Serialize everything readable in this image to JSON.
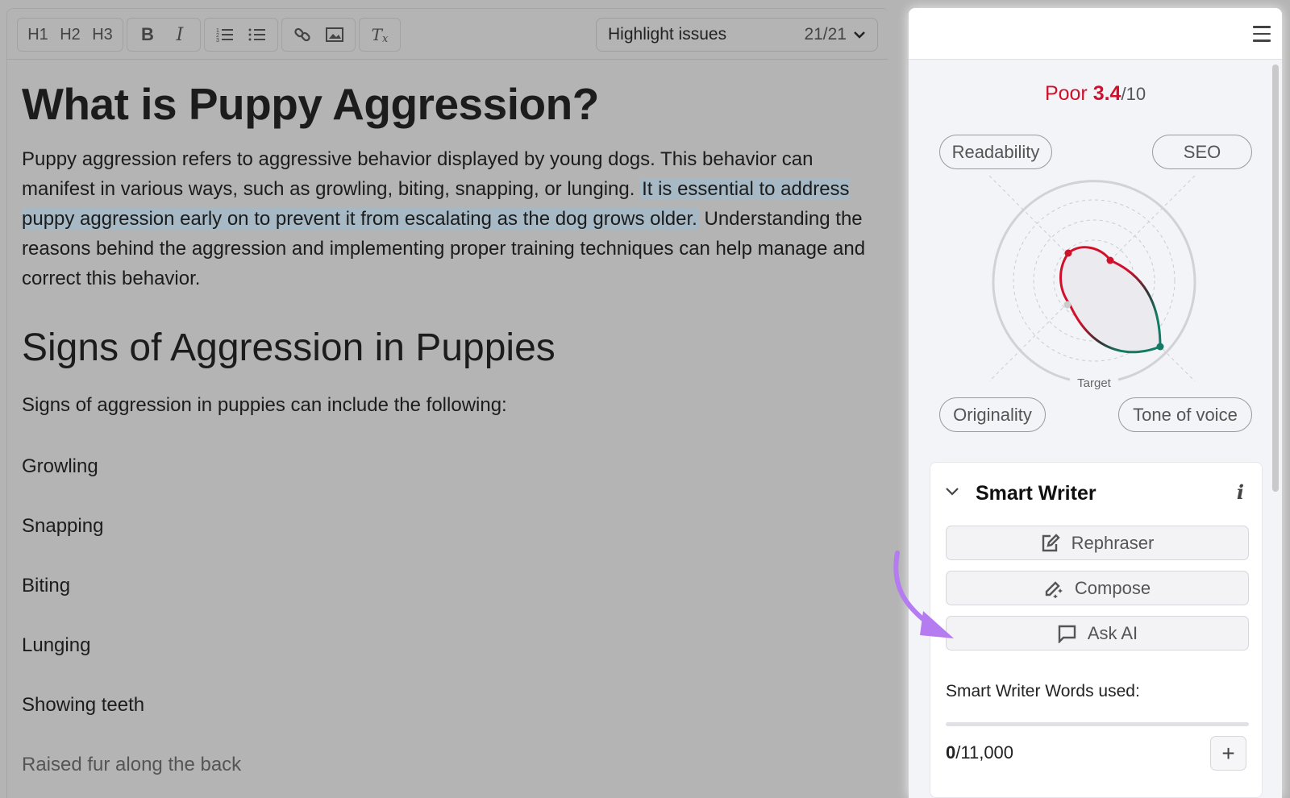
{
  "toolbar": {
    "h1": "H1",
    "h2": "H2",
    "h3": "H3",
    "bold": "B",
    "italic": "I",
    "highlight_label": "Highlight issues",
    "highlight_count": "21/21"
  },
  "doc": {
    "title": "What is Puppy Aggression?",
    "p1_before": "Puppy aggression refers to aggressive behavior displayed by young dogs. This behavior can manifest in various ways, such as growling, biting, snapping, or lunging. ",
    "p1_highlight": "It is essential to address puppy aggression early on to prevent it from escalating as the dog grows older.",
    "p1_after": " Understanding the reasons behind the aggression and implementing proper training techniques can help manage and correct this behavior.",
    "h2": "Signs of Aggression in Puppies",
    "intro": "Signs of aggression in puppies can include the following:",
    "list": [
      "Growling",
      "Snapping",
      "Biting",
      "Lunging",
      "Showing teeth",
      "Raised fur along the back"
    ]
  },
  "panel": {
    "score_label": "Poor",
    "score_value": "3.4",
    "score_max": "/10",
    "score_color": "#d1102b",
    "axes": {
      "readability": "Readability",
      "seo": "SEO",
      "originality": "Originality",
      "tone": "Tone of voice"
    },
    "target_label": "Target",
    "smart_writer": {
      "title": "Smart Writer",
      "info": "i",
      "rephraser": "Rephraser",
      "compose": "Compose",
      "ask_ai": "Ask AI",
      "words_label": "Smart Writer Words used:",
      "used": "0",
      "limit": "/11,000",
      "used_fraction": 0,
      "plus": "+"
    }
  },
  "annotation_color": "#b57bf0"
}
